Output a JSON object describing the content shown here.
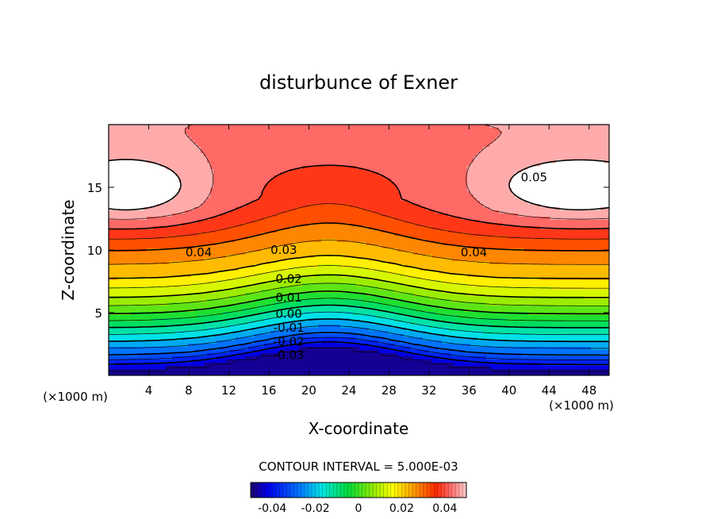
{
  "chart_data": {
    "type": "heatmap",
    "title": "disturbunce of Exner",
    "xlabel": "X-coordinate",
    "ylabel": "Z-coordinate",
    "x_unit": "(×1000 m)",
    "z_unit": "(×1000 m)",
    "xlim": [
      0,
      50
    ],
    "ylim": [
      0,
      20
    ],
    "xticks": [
      4,
      8,
      12,
      16,
      20,
      24,
      28,
      32,
      36,
      40,
      44,
      48
    ],
    "yticks": [
      5,
      10,
      15
    ],
    "contour_interval_text": "CONTOUR INTERVAL = 5.000E-03",
    "contour_interval": 0.005,
    "value_range": [
      -0.045,
      0.05
    ],
    "contour_labels": [
      {
        "text": "0.05",
        "value": 0.05,
        "x": 42.5,
        "z": 15.8
      },
      {
        "text": "0.04",
        "value": 0.04,
        "x": 9.0,
        "z": 9.8
      },
      {
        "text": "0.04",
        "value": 0.04,
        "x": 36.5,
        "z": 9.8
      },
      {
        "text": "0.03",
        "value": 0.03,
        "x": 17.5,
        "z": 10.0
      },
      {
        "text": "0.02",
        "value": 0.02,
        "x": 18.0,
        "z": 7.7
      },
      {
        "text": "0.01",
        "value": 0.01,
        "x": 18.0,
        "z": 6.2
      },
      {
        "text": "0.00",
        "value": 0.0,
        "x": 18.0,
        "z": 4.9
      },
      {
        "text": "-0.01",
        "value": -0.01,
        "x": 18.0,
        "z": 3.8
      },
      {
        "text": "-0.02",
        "value": -0.02,
        "x": 18.0,
        "z": 2.7
      },
      {
        "text": "-0.03",
        "value": -0.03,
        "x": 18.0,
        "z": 1.6
      }
    ],
    "colorbar": {
      "ticks": [
        "-0.04",
        "-0.02",
        "0",
        "0.02",
        "0.04"
      ],
      "tick_values": [
        -0.04,
        -0.02,
        0,
        0.02,
        0.04
      ],
      "range": [
        -0.05,
        0.05
      ]
    },
    "negative_contours_dashed": true,
    "bold_contour_every": 0.01,
    "unshaded_above": 0.05
  }
}
